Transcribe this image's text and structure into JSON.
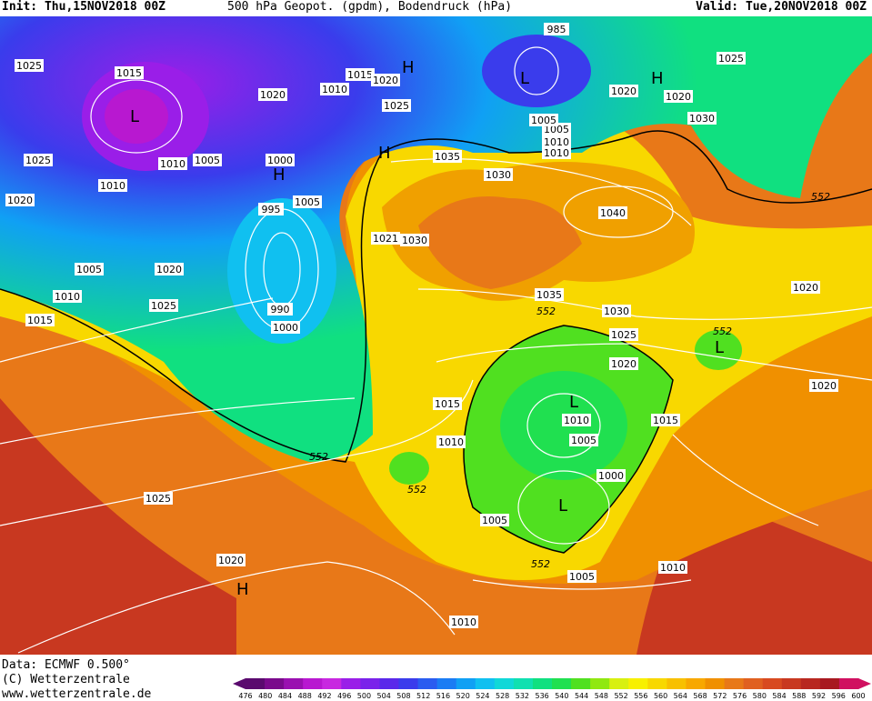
{
  "header": {
    "init": "Init: Thu,15NOV2018 00Z",
    "title": "500 hPa Geopot. (gpdm), Bodendruck (hPa)",
    "valid": "Valid: Tue,20NOV2018 00Z"
  },
  "footer": {
    "data_line": "Data: ECMWF  0.500°",
    "copyright_line": "(C) Wetterzentrale",
    "url_line": "www.wetterzentrale.de"
  },
  "colorbar": {
    "labels": [
      "476",
      "480",
      "484",
      "488",
      "492",
      "496",
      "500",
      "504",
      "508",
      "512",
      "516",
      "520",
      "524",
      "528",
      "532",
      "536",
      "540",
      "544",
      "548",
      "552",
      "556",
      "560",
      "564",
      "568",
      "572",
      "576",
      "580",
      "584",
      "588",
      "592",
      "596",
      "600"
    ],
    "colors": [
      "#5a0a6e",
      "#7a0a8c",
      "#9a10b0",
      "#b818d0",
      "#c828e0",
      "#9a1ee8",
      "#7a22ea",
      "#5a28ea",
      "#3a3cec",
      "#2a5cf0",
      "#1a7cf4",
      "#10a0f4",
      "#10c0f0",
      "#10d8d8",
      "#10e0b0",
      "#10e080",
      "#20e050",
      "#50e020",
      "#90e810",
      "#d8f010",
      "#f8f000",
      "#f8d800",
      "#f8c000",
      "#f8a800",
      "#f09000",
      "#e87818",
      "#e06020",
      "#d84a20",
      "#c83820",
      "#b82820",
      "#a81820",
      "#d01060"
    ]
  },
  "pressure_labels": [
    "1025",
    "1015",
    "1020",
    "1010",
    "1015",
    "1020",
    "1025",
    "985",
    "1025",
    "1005",
    "1010",
    "1005",
    "1010",
    "1030",
    "1025",
    "1035",
    "1030",
    "1010",
    "1020",
    "1005",
    "1010",
    "1020",
    "1000",
    "995",
    "1005",
    "1005",
    "1020",
    "1020",
    "1021",
    "1030",
    "1040",
    "1035",
    "1030",
    "1025",
    "1010",
    "1015",
    "1020",
    "1025",
    "990",
    "1000",
    "1015",
    "1010",
    "1000",
    "1005",
    "1010",
    "1015",
    "1020",
    "1025",
    "1020",
    "1010",
    "1005",
    "1005",
    "1020",
    "1010"
  ],
  "geopotential_labels": [
    "552",
    "552",
    "552",
    "552",
    "552",
    "552"
  ],
  "pressure_centers": [
    "L",
    "L",
    "H",
    "H",
    "H",
    "H",
    "L",
    "L",
    "L",
    "H"
  ]
}
